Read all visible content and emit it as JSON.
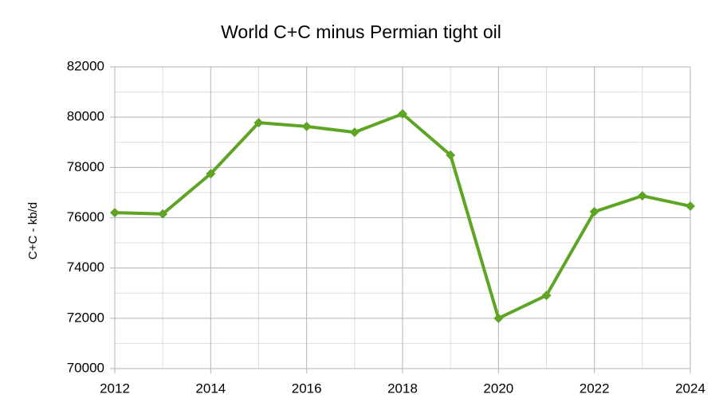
{
  "chart_data": {
    "type": "line",
    "title": "World C+C minus Permian tight oil",
    "y_label": "C+C - kb/d",
    "x": [
      2012,
      2013,
      2014,
      2015,
      2016,
      2017,
      2018,
      2019,
      2020,
      2021,
      2022,
      2023,
      2024
    ],
    "series": [
      {
        "name": "World C+C minus Permian tight oil",
        "color": "#5ea425",
        "values": [
          76200,
          76150,
          77750,
          79780,
          79630,
          79400,
          80130,
          78490,
          72000,
          72910,
          76240,
          76870,
          76460
        ]
      }
    ],
    "xlim": [
      2012,
      2024
    ],
    "xticks": [
      2012,
      2014,
      2016,
      2018,
      2020,
      2022,
      2024
    ],
    "ylim": [
      70000,
      82000
    ],
    "yticks": [
      70000,
      72000,
      74000,
      76000,
      78000,
      80000,
      82000
    ],
    "grid": true,
    "minor_grid": true,
    "legend": false
  }
}
